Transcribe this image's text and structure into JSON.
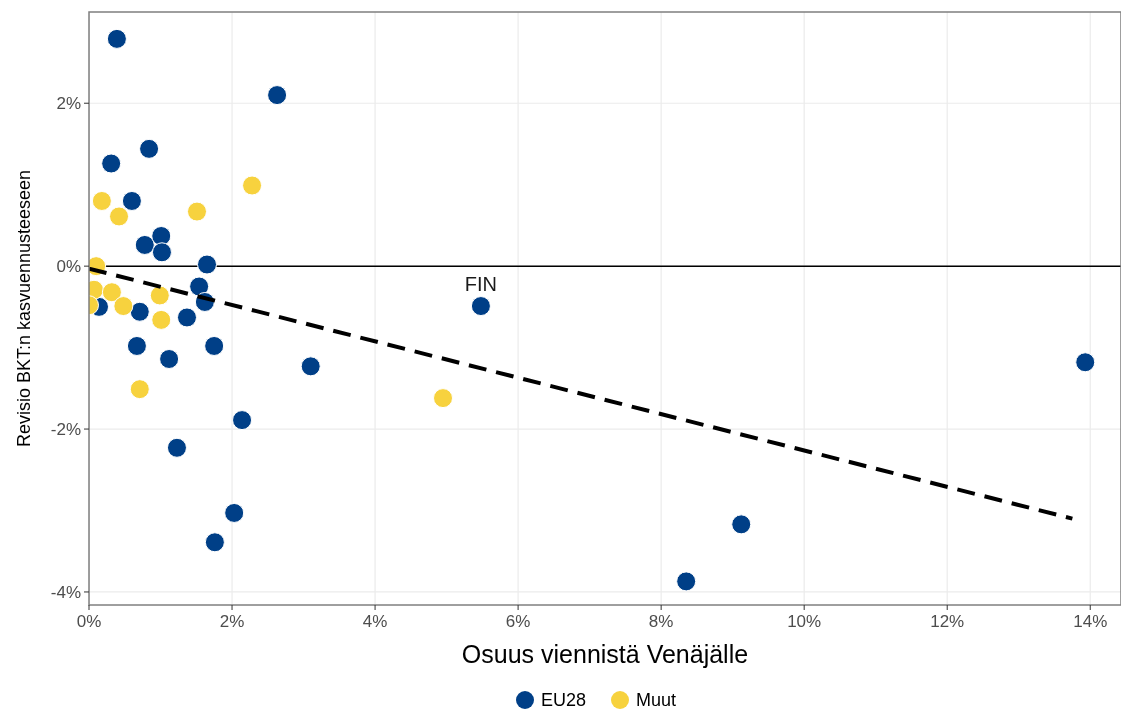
{
  "chart_data": {
    "type": "scatter",
    "xlabel": "Osuus viennistä Venäjälle",
    "ylabel": "Revisio BKT:n kasvuennusteeseen",
    "xlim": [
      0,
      14.43
    ],
    "ylim": [
      -4.16,
      3.12
    ],
    "xticks": [
      {
        "value": 0,
        "label": "0%"
      },
      {
        "value": 2,
        "label": "2%"
      },
      {
        "value": 4,
        "label": "4%"
      },
      {
        "value": 6,
        "label": "6%"
      },
      {
        "value": 8,
        "label": "8%"
      },
      {
        "value": 10,
        "label": "10%"
      },
      {
        "value": 12,
        "label": "12%"
      },
      {
        "value": 14,
        "label": "14%"
      }
    ],
    "yticks": [
      {
        "value": -4,
        "label": "-4%"
      },
      {
        "value": -2,
        "label": "-2%"
      },
      {
        "value": 0,
        "label": "0%"
      },
      {
        "value": 2,
        "label": "2%"
      }
    ],
    "grid": true,
    "legend": "bottom",
    "marker": "circle",
    "ref_lines": [
      {
        "axis": "y",
        "value": 0,
        "color": "#000000"
      }
    ],
    "annotations": [
      {
        "text": "FIN",
        "x": 5.48,
        "y": -0.49
      }
    ],
    "series": [
      {
        "name": "EU28",
        "color": "#003f87",
        "x": [
          0.39,
          2.63,
          0.31,
          0.84,
          0.6,
          0.78,
          1.01,
          1.02,
          1.65,
          1.54,
          1.62,
          0.14,
          0.71,
          1.37,
          0.67,
          1.75,
          1.12,
          3.1,
          5.48,
          2.14,
          1.23,
          2.03,
          1.76,
          8.35,
          9.12,
          13.93
        ],
        "values": [
          2.79,
          2.1,
          1.26,
          1.44,
          0.8,
          0.26,
          0.37,
          0.17,
          0.02,
          -0.25,
          -0.44,
          -0.5,
          -0.56,
          -0.63,
          -0.98,
          -0.98,
          -1.14,
          -1.23,
          -0.49,
          -1.89,
          -2.23,
          -3.03,
          -3.39,
          -3.87,
          -3.17,
          -1.18
        ]
      },
      {
        "name": "Muut",
        "color": "#f7d23e",
        "x": [
          0.1,
          0.18,
          0.42,
          1.51,
          2.28,
          0.07,
          0.32,
          0.48,
          0.99,
          1.01,
          0,
          0.71,
          4.95
        ],
        "values": [
          0,
          0.8,
          0.61,
          0.67,
          0.99,
          -0.29,
          -0.32,
          -0.49,
          -0.36,
          -0.66,
          -0.48,
          -1.51,
          -1.62
        ]
      },
      {
        "type": "line",
        "color": "#000000",
        "line_style": "dashed",
        "marker": "none",
        "x": [
          0,
          13.75
        ],
        "values": [
          -0.03,
          -3.1
        ]
      }
    ]
  }
}
